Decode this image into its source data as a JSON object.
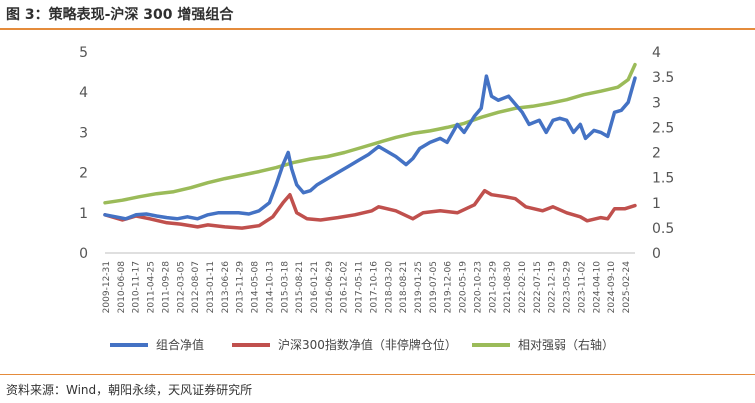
{
  "header": {
    "title": "图 3：策略表现-沪深 300 增强组合"
  },
  "footer": {
    "source": "资料来源：Wind，朝阳永续，天风证券研究所"
  },
  "colors": {
    "accent_rule": "#e48b3b",
    "series_portfolio": "#4472c4",
    "series_index": "#c0504d",
    "series_relative": "#9bbb59"
  },
  "chart_data": {
    "type": "line",
    "title": "策略表现-沪深 300 增强组合",
    "x_tick_labels": [
      "2009-12-31",
      "2010-06-08",
      "2010-11-17",
      "2011-04-25",
      "2011-09-28",
      "2012-03-05",
      "2012-08-07",
      "2013-01-11",
      "2013-06-26",
      "2013-11-29",
      "2014-05-08",
      "2014-10-13",
      "2015-03-18",
      "2015-08-21",
      "2016-01-21",
      "2016-06-29",
      "2016-12-02",
      "2017-05-11",
      "2017-10-16",
      "2018-03-20",
      "2018-08-21",
      "2019-01-25",
      "2019-07-05",
      "2019-12-06",
      "2020-05-19",
      "2020-10-23",
      "2021-03-29",
      "2021-08-30",
      "2022-02-10",
      "2022-07-15",
      "2022-12-19",
      "2023-05-29",
      "2023-11-02",
      "2024-04-10",
      "2024-09-10",
      "2025-02-24"
    ],
    "y_left": {
      "ticks": [
        "0",
        "1",
        "2",
        "3",
        "4",
        "5"
      ],
      "range": [
        0,
        5
      ]
    },
    "y_right": {
      "ticks": [
        "0",
        "0.5",
        "1",
        "1.5",
        "2",
        "2.5",
        "3",
        "3.5",
        "4"
      ],
      "range": [
        0,
        4
      ]
    },
    "grid": false,
    "legend_position": "bottom",
    "series": [
      {
        "name": "组合净值",
        "axis": "left",
        "x": [
          2009.99,
          2010.3,
          2010.6,
          2010.9,
          2011.2,
          2011.5,
          2011.8,
          2012.1,
          2012.4,
          2012.7,
          2013.0,
          2013.3,
          2013.6,
          2013.9,
          2014.2,
          2014.5,
          2014.8,
          2015.0,
          2015.2,
          2015.35,
          2015.45,
          2015.6,
          2015.8,
          2016.0,
          2016.2,
          2016.5,
          2016.8,
          2017.1,
          2017.4,
          2017.7,
          2018.0,
          2018.2,
          2018.5,
          2018.8,
          2019.0,
          2019.2,
          2019.5,
          2019.8,
          2020.0,
          2020.3,
          2020.5,
          2020.8,
          2021.0,
          2021.15,
          2021.3,
          2021.5,
          2021.8,
          2022.0,
          2022.2,
          2022.4,
          2022.7,
          2022.9,
          2023.1,
          2023.3,
          2023.5,
          2023.7,
          2023.9,
          2024.05,
          2024.3,
          2024.5,
          2024.7,
          2024.9,
          2025.1,
          2025.3,
          2025.5
        ],
        "values": [
          0.95,
          0.9,
          0.85,
          0.95,
          0.97,
          0.92,
          0.88,
          0.85,
          0.9,
          0.85,
          0.95,
          1.0,
          1.0,
          1.0,
          0.97,
          1.05,
          1.25,
          1.7,
          2.2,
          2.5,
          2.1,
          1.7,
          1.5,
          1.55,
          1.7,
          1.85,
          2.0,
          2.15,
          2.3,
          2.45,
          2.65,
          2.55,
          2.4,
          2.2,
          2.35,
          2.6,
          2.75,
          2.85,
          2.75,
          3.2,
          3.0,
          3.4,
          3.6,
          4.4,
          3.9,
          3.8,
          3.9,
          3.7,
          3.5,
          3.2,
          3.3,
          3.0,
          3.3,
          3.35,
          3.3,
          3.0,
          3.2,
          2.85,
          3.05,
          3.0,
          2.9,
          3.5,
          3.55,
          3.75,
          4.35
        ]
      },
      {
        "name": "沪深300指数净值（非停牌仓位）",
        "axis": "left",
        "x": [
          2009.99,
          2010.5,
          2010.9,
          2011.3,
          2011.8,
          2012.2,
          2012.7,
          2013.0,
          2013.5,
          2014.0,
          2014.5,
          2014.9,
          2015.2,
          2015.4,
          2015.6,
          2015.9,
          2016.3,
          2016.8,
          2017.3,
          2017.8,
          2018.0,
          2018.5,
          2019.0,
          2019.3,
          2019.8,
          2020.3,
          2020.8,
          2021.1,
          2021.3,
          2021.7,
          2022.0,
          2022.3,
          2022.8,
          2023.1,
          2023.5,
          2023.9,
          2024.1,
          2024.5,
          2024.7,
          2024.9,
          2025.2,
          2025.5
        ],
        "values": [
          0.95,
          0.82,
          0.92,
          0.85,
          0.75,
          0.72,
          0.65,
          0.7,
          0.65,
          0.62,
          0.68,
          0.9,
          1.25,
          1.45,
          1.0,
          0.85,
          0.82,
          0.88,
          0.95,
          1.05,
          1.15,
          1.05,
          0.85,
          1.0,
          1.05,
          1.0,
          1.2,
          1.55,
          1.45,
          1.4,
          1.35,
          1.15,
          1.05,
          1.15,
          1.0,
          0.9,
          0.8,
          0.88,
          0.85,
          1.1,
          1.1,
          1.18
        ]
      },
      {
        "name": "相对强弱（右轴）",
        "axis": "right",
        "x": [
          2009.99,
          2010.5,
          2011.0,
          2011.5,
          2012.0,
          2012.5,
          2013.0,
          2013.5,
          2014.0,
          2014.5,
          2015.0,
          2015.5,
          2016.0,
          2016.5,
          2017.0,
          2017.5,
          2018.0,
          2018.5,
          2019.0,
          2019.5,
          2020.0,
          2020.5,
          2021.0,
          2021.5,
          2022.0,
          2022.5,
          2023.0,
          2023.5,
          2024.0,
          2024.5,
          2025.0,
          2025.3,
          2025.5
        ],
        "values": [
          1.0,
          1.05,
          1.12,
          1.18,
          1.22,
          1.3,
          1.4,
          1.48,
          1.55,
          1.62,
          1.7,
          1.8,
          1.87,
          1.92,
          2.0,
          2.1,
          2.2,
          2.3,
          2.38,
          2.43,
          2.5,
          2.58,
          2.7,
          2.8,
          2.88,
          2.92,
          2.98,
          3.05,
          3.15,
          3.22,
          3.3,
          3.45,
          3.75
        ]
      }
    ]
  }
}
